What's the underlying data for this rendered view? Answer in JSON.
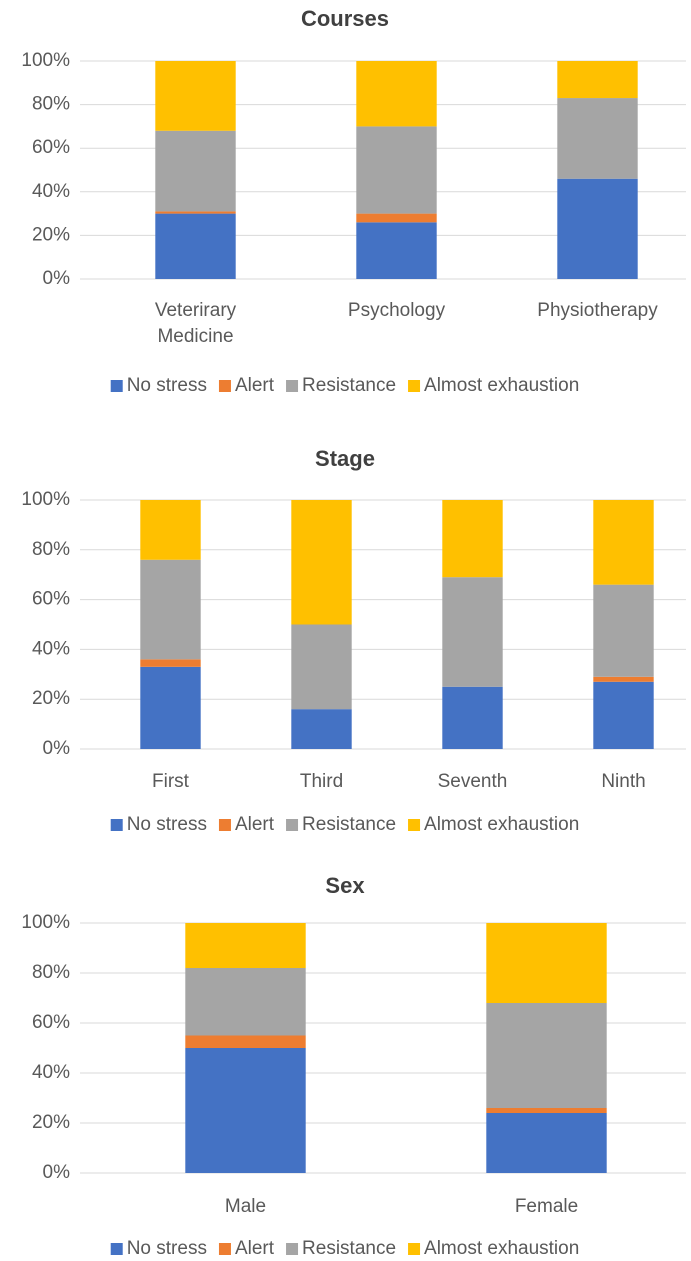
{
  "chart_data": [
    {
      "type": "stacked_bar",
      "title": "Courses",
      "categories": [
        "Veterirary Medicine",
        "Psychology",
        "Physiotherapy"
      ],
      "series": [
        {
          "name": "No stress",
          "color": "#4472c4",
          "values": [
            30,
            26,
            46
          ]
        },
        {
          "name": "Alert",
          "color": "#ed7d31",
          "values": [
            1,
            4,
            0
          ]
        },
        {
          "name": "Resistance",
          "color": "#a5a5a5",
          "values": [
            37,
            40,
            37
          ]
        },
        {
          "name": "Almost exhaustion",
          "color": "#ffc000",
          "values": [
            32,
            30,
            17
          ]
        }
      ],
      "ylim": [
        0,
        100
      ],
      "yticks": [
        {
          "value": 0,
          "label": "0%"
        },
        {
          "value": 20,
          "label": "20%"
        },
        {
          "value": 40,
          "label": "40%"
        },
        {
          "value": 60,
          "label": "60%"
        },
        {
          "value": 80,
          "label": "80%"
        },
        {
          "value": 100,
          "label": "100%"
        }
      ],
      "grid": true,
      "legend": "bottom"
    },
    {
      "type": "stacked_bar",
      "title": "Stage",
      "categories": [
        "First",
        "Third",
        "Seventh",
        "Ninth"
      ],
      "series": [
        {
          "name": "No stress",
          "color": "#4472c4",
          "values": [
            33,
            16,
            25,
            27
          ]
        },
        {
          "name": "Alert",
          "color": "#ed7d31",
          "values": [
            3,
            0,
            0,
            2
          ]
        },
        {
          "name": "Resistance",
          "color": "#a5a5a5",
          "values": [
            40,
            34,
            44,
            37
          ]
        },
        {
          "name": "Almost exhaustion",
          "color": "#ffc000",
          "values": [
            24,
            50,
            31,
            34
          ]
        }
      ],
      "ylim": [
        0,
        100
      ],
      "yticks": [
        {
          "value": 0,
          "label": "0%"
        },
        {
          "value": 20,
          "label": "20%"
        },
        {
          "value": 40,
          "label": "40%"
        },
        {
          "value": 60,
          "label": "60%"
        },
        {
          "value": 80,
          "label": "80%"
        },
        {
          "value": 100,
          "label": "100%"
        }
      ],
      "grid": true,
      "legend": "bottom"
    },
    {
      "type": "stacked_bar",
      "title": "Sex",
      "categories": [
        "Male",
        "Female"
      ],
      "series": [
        {
          "name": "No stress",
          "color": "#4472c4",
          "values": [
            50,
            24
          ]
        },
        {
          "name": "Alert",
          "color": "#ed7d31",
          "values": [
            5,
            2
          ]
        },
        {
          "name": "Resistance",
          "color": "#a5a5a5",
          "values": [
            27,
            42
          ]
        },
        {
          "name": "Almost exhaustion",
          "color": "#ffc000",
          "values": [
            18,
            32
          ]
        }
      ],
      "ylim": [
        0,
        100
      ],
      "yticks": [
        {
          "value": 0,
          "label": "0%"
        },
        {
          "value": 20,
          "label": "20%"
        },
        {
          "value": 40,
          "label": "40%"
        },
        {
          "value": 60,
          "label": "60%"
        },
        {
          "value": 80,
          "label": "80%"
        },
        {
          "value": 100,
          "label": "100%"
        }
      ],
      "grid": true,
      "legend": "bottom"
    }
  ]
}
